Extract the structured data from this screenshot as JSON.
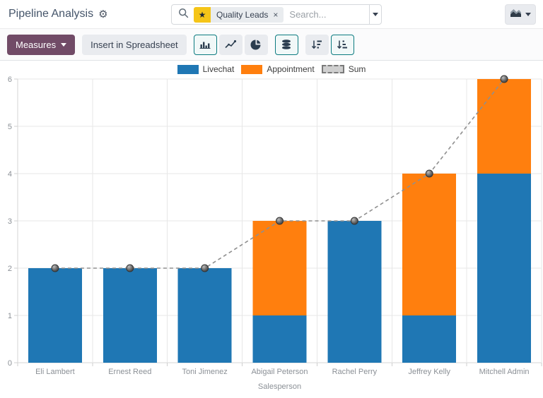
{
  "header": {
    "title": "Pipeline Analysis",
    "gear_icon": "⚙",
    "search": {
      "icon": "magnifier",
      "facet": {
        "icon": "star",
        "star_glyph": "★",
        "label": "Quality Leads",
        "remove_glyph": "×"
      },
      "placeholder": "Search...",
      "dropdown_icon": "caret-down"
    },
    "view_switcher": {
      "icon": "area-chart",
      "caret": "caret-down"
    }
  },
  "toolbar": {
    "measures_label": "Measures",
    "insert_spreadsheet_label": "Insert in Spreadsheet",
    "buttons": {
      "bar": {
        "label": "Bar Chart",
        "active": true
      },
      "line": {
        "label": "Line Chart",
        "active": false
      },
      "pie": {
        "label": "Pie Chart",
        "active": false
      },
      "stacked": {
        "label": "Stacked",
        "active": true
      },
      "sort_desc": {
        "label": "Descending",
        "active": false
      },
      "sort_asc": {
        "label": "Ascending",
        "active": true
      }
    }
  },
  "chart_data": {
    "type": "bar",
    "stacked": true,
    "title": "",
    "xlabel": "Salesperson",
    "ylabel": "",
    "ylim": [
      0,
      6
    ],
    "yticks": [
      0,
      1,
      2,
      3,
      4,
      5,
      6
    ],
    "grid": true,
    "legend_position": "top",
    "categories": [
      "Eli Lambert",
      "Ernest Reed",
      "Toni Jimenez",
      "Abigail Peterson",
      "Rachel Perry",
      "Jeffrey Kelly",
      "Mitchell Admin"
    ],
    "series": [
      {
        "name": "Livechat",
        "type": "bar",
        "color": "#1f77b4",
        "values": [
          2,
          2,
          2,
          1,
          3,
          1,
          4
        ]
      },
      {
        "name": "Appointment",
        "type": "bar",
        "color": "#ff7f0e",
        "values": [
          0,
          0,
          0,
          2,
          0,
          3,
          2
        ]
      },
      {
        "name": "Sum",
        "type": "line",
        "style": "dashed",
        "color": "#8f8f8f",
        "values": [
          2,
          2,
          2,
          3,
          3,
          4,
          6
        ]
      }
    ]
  },
  "colors": {
    "accent_active": "#0c7b80",
    "measures_bg": "#714B67",
    "facet_star_bg": "#f5c518",
    "grid": "#e7e7e7",
    "axis_text": "#8b9096",
    "sum_marker": "#5a5a5a"
  }
}
